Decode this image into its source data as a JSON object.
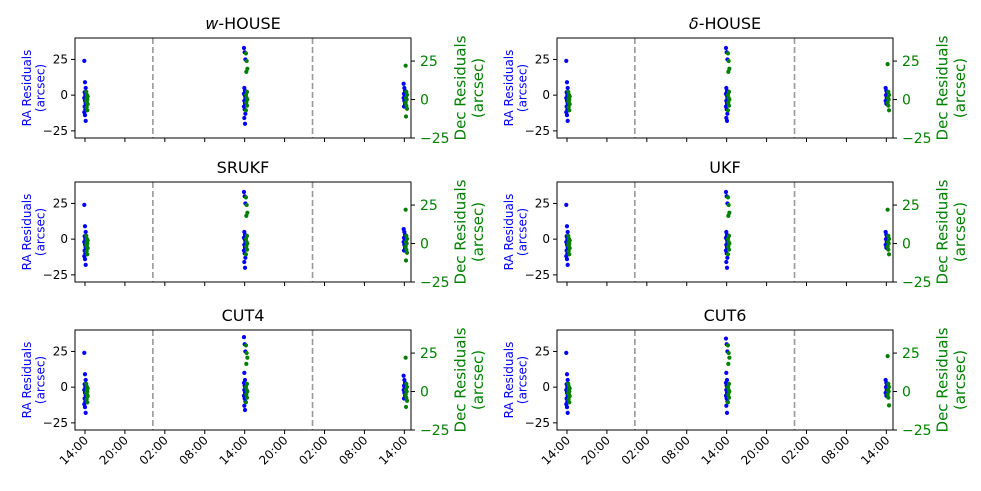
{
  "figure": {
    "colors": {
      "ra": "#0000ff",
      "dec": "#008000",
      "divider": "#999999",
      "axis": "#000000"
    },
    "ra_ylabel_line1": "RA Residuals",
    "ra_ylabel_line2": "(arcsec)",
    "dec_ylabel_line1": "Dec Residuals",
    "dec_ylabel_line2": "(arcsec)"
  },
  "chart_data": [
    {
      "type": "scatter",
      "title_prefix": "w",
      "title": "-HOUSE",
      "x_ticks": [
        "14:00",
        "20:00",
        "02:00",
        "08:00",
        "14:00",
        "20:00",
        "02:00",
        "08:00",
        "14:00"
      ],
      "x_hours": [
        0,
        6,
        12,
        18,
        24,
        30,
        36,
        42,
        48
      ],
      "xlim": [
        -1.5,
        49
      ],
      "dividers_hours": [
        10.2,
        34.2
      ],
      "left_axis": {
        "label": "RA Residuals (arcsec)",
        "ticks": [
          -25,
          0,
          25
        ],
        "ylim": [
          -30,
          40
        ]
      },
      "right_axis": {
        "label": "Dec Residuals (arcsec)",
        "ticks": [
          -25,
          0,
          25
        ],
        "ylim": [
          -25,
          40
        ]
      },
      "series": [
        {
          "name": "RA",
          "axis": "left",
          "clusters": [
            {
              "x": 0,
              "y": [
                24,
                9,
                5,
                2,
                0,
                -2,
                -4,
                -6,
                -8,
                -10,
                -12,
                -14,
                -18
              ]
            },
            {
              "x": 24,
              "y": [
                33,
                30,
                25,
                5,
                3,
                1,
                0,
                -2,
                -4,
                -6,
                -8,
                -10,
                -13,
                -16,
                -20
              ]
            },
            {
              "x": 48,
              "y": [
                8,
                5,
                3,
                1,
                0,
                -2,
                -4,
                -6,
                -8
              ]
            }
          ]
        },
        {
          "name": "Dec",
          "axis": "right",
          "clusters": [
            {
              "x": 0.3,
              "y": [
                5,
                3,
                2,
                1,
                0,
                -1,
                -2,
                -3,
                -5,
                -7
              ]
            },
            {
              "x": 24.3,
              "y": [
                30,
                25,
                20,
                18,
                5,
                3,
                1,
                0,
                -2,
                -4,
                -7
              ]
            },
            {
              "x": 48.3,
              "y": [
                22,
                5,
                3,
                1,
                0,
                -2,
                -4,
                -6,
                -11
              ]
            }
          ]
        }
      ]
    },
    {
      "type": "scatter",
      "title_prefix": "δ",
      "title": "-HOUSE",
      "x_ticks": [
        "14:00",
        "20:00",
        "02:00",
        "08:00",
        "14:00",
        "20:00",
        "02:00",
        "08:00",
        "14:00"
      ],
      "x_hours": [
        0,
        6,
        12,
        18,
        24,
        30,
        36,
        42,
        48
      ],
      "xlim": [
        -1.5,
        49
      ],
      "dividers_hours": [
        10.2,
        34.2
      ],
      "left_axis": {
        "label": "RA Residuals (arcsec)",
        "ticks": [
          -25,
          0,
          25
        ],
        "ylim": [
          -30,
          40
        ]
      },
      "right_axis": {
        "label": "Dec Residuals (arcsec)",
        "ticks": [
          -25,
          0,
          25
        ],
        "ylim": [
          -25,
          40
        ]
      },
      "series": [
        {
          "name": "RA",
          "axis": "left",
          "clusters": [
            {
              "x": 0,
              "y": [
                24,
                9,
                5,
                2,
                0,
                -2,
                -4,
                -6,
                -8,
                -10,
                -12,
                -14,
                -18
              ]
            },
            {
              "x": 24,
              "y": [
                33,
                30,
                25,
                5,
                3,
                1,
                0,
                -2,
                -4,
                -6,
                -8,
                -10,
                -13,
                -16,
                -18
              ]
            },
            {
              "x": 48,
              "y": [
                5,
                3,
                1,
                0,
                -2,
                -4,
                -6
              ]
            }
          ]
        },
        {
          "name": "Dec",
          "axis": "right",
          "clusters": [
            {
              "x": 0.3,
              "y": [
                5,
                3,
                2,
                1,
                0,
                -1,
                -2,
                -3,
                -5,
                -7
              ]
            },
            {
              "x": 24.3,
              "y": [
                30,
                25,
                20,
                18,
                5,
                3,
                1,
                0,
                -2,
                -4,
                -7
              ]
            },
            {
              "x": 48.3,
              "y": [
                23,
                5,
                3,
                1,
                0,
                -2,
                -4,
                -7
              ]
            }
          ]
        }
      ]
    },
    {
      "type": "scatter",
      "title_prefix": "",
      "title": "SRUKF",
      "x_ticks": [
        "14:00",
        "20:00",
        "02:00",
        "08:00",
        "14:00",
        "20:00",
        "02:00",
        "08:00",
        "14:00"
      ],
      "x_hours": [
        0,
        6,
        12,
        18,
        24,
        30,
        36,
        42,
        48
      ],
      "xlim": [
        -1.5,
        49
      ],
      "dividers_hours": [
        10.2,
        34.2
      ],
      "left_axis": {
        "label": "RA Residuals (arcsec)",
        "ticks": [
          -25,
          0,
          25
        ],
        "ylim": [
          -30,
          40
        ]
      },
      "right_axis": {
        "label": "Dec Residuals (arcsec)",
        "ticks": [
          -25,
          0,
          25
        ],
        "ylim": [
          -25,
          40
        ]
      },
      "series": [
        {
          "name": "RA",
          "axis": "left",
          "clusters": [
            {
              "x": 0,
              "y": [
                24,
                9,
                5,
                2,
                0,
                -2,
                -4,
                -6,
                -8,
                -10,
                -12,
                -14,
                -18
              ]
            },
            {
              "x": 24,
              "y": [
                33,
                30,
                25,
                5,
                3,
                1,
                0,
                -2,
                -4,
                -6,
                -8,
                -10,
                -13,
                -16,
                -20
              ]
            },
            {
              "x": 48,
              "y": [
                7,
                5,
                3,
                1,
                0,
                -2,
                -4,
                -6,
                -8
              ]
            }
          ]
        },
        {
          "name": "Dec",
          "axis": "right",
          "clusters": [
            {
              "x": 0.3,
              "y": [
                5,
                3,
                2,
                1,
                0,
                -1,
                -2,
                -3,
                -5,
                -7
              ]
            },
            {
              "x": 24.3,
              "y": [
                30,
                25,
                20,
                18,
                5,
                3,
                1,
                0,
                -2,
                -4,
                -7
              ]
            },
            {
              "x": 48.3,
              "y": [
                22,
                5,
                3,
                1,
                0,
                -2,
                -4,
                -6,
                -11
              ]
            }
          ]
        }
      ]
    },
    {
      "type": "scatter",
      "title_prefix": "",
      "title": "UKF",
      "x_ticks": [
        "14:00",
        "20:00",
        "02:00",
        "08:00",
        "14:00",
        "20:00",
        "02:00",
        "08:00",
        "14:00"
      ],
      "x_hours": [
        0,
        6,
        12,
        18,
        24,
        30,
        36,
        42,
        48
      ],
      "xlim": [
        -1.5,
        49
      ],
      "dividers_hours": [
        10.2,
        34.2
      ],
      "left_axis": {
        "label": "RA Residuals (arcsec)",
        "ticks": [
          -25,
          0,
          25
        ],
        "ylim": [
          -30,
          40
        ]
      },
      "right_axis": {
        "label": "Dec Residuals (arcsec)",
        "ticks": [
          -25,
          0,
          25
        ],
        "ylim": [
          -25,
          40
        ]
      },
      "series": [
        {
          "name": "RA",
          "axis": "left",
          "clusters": [
            {
              "x": 0,
              "y": [
                24,
                9,
                5,
                2,
                0,
                -2,
                -4,
                -6,
                -8,
                -10,
                -12,
                -14,
                -18
              ]
            },
            {
              "x": 24,
              "y": [
                33,
                30,
                25,
                5,
                3,
                1,
                0,
                -2,
                -4,
                -6,
                -8,
                -10,
                -13,
                -16,
                -20
              ]
            },
            {
              "x": 48,
              "y": [
                5,
                3,
                1,
                0,
                -2,
                -4,
                -6
              ]
            }
          ]
        },
        {
          "name": "Dec",
          "axis": "right",
          "clusters": [
            {
              "x": 0.3,
              "y": [
                5,
                3,
                2,
                1,
                0,
                -1,
                -2,
                -3,
                -5,
                -7
              ]
            },
            {
              "x": 24.3,
              "y": [
                30,
                25,
                20,
                18,
                5,
                3,
                1,
                0,
                -2,
                -4,
                -7
              ]
            },
            {
              "x": 48.3,
              "y": [
                22,
                5,
                3,
                1,
                0,
                -2,
                -4,
                -7
              ]
            }
          ]
        }
      ]
    },
    {
      "type": "scatter",
      "title_prefix": "",
      "title": "CUT4",
      "x_ticks": [
        "14:00",
        "20:00",
        "02:00",
        "08:00",
        "14:00",
        "20:00",
        "02:00",
        "08:00",
        "14:00"
      ],
      "x_hours": [
        0,
        6,
        12,
        18,
        24,
        30,
        36,
        42,
        48
      ],
      "xlim": [
        -1.5,
        49
      ],
      "dividers_hours": [
        10.2,
        34.2
      ],
      "left_axis": {
        "label": "RA Residuals (arcsec)",
        "ticks": [
          -25,
          0,
          25
        ],
        "ylim": [
          -30,
          40
        ]
      },
      "right_axis": {
        "label": "Dec Residuals (arcsec)",
        "ticks": [
          -25,
          0,
          25
        ],
        "ylim": [
          -25,
          40
        ]
      },
      "series": [
        {
          "name": "RA",
          "axis": "left",
          "clusters": [
            {
              "x": 0,
              "y": [
                24,
                9,
                5,
                2,
                0,
                -2,
                -4,
                -6,
                -8,
                -10,
                -12,
                -14,
                -18
              ]
            },
            {
              "x": 24,
              "y": [
                35,
                30,
                25,
                10,
                5,
                3,
                1,
                0,
                -2,
                -4,
                -6,
                -8,
                -10,
                -13,
                -16
              ]
            },
            {
              "x": 48,
              "y": [
                8,
                5,
                3,
                1,
                0,
                -2,
                -4,
                -6,
                -8
              ]
            }
          ]
        },
        {
          "name": "Dec",
          "axis": "right",
          "clusters": [
            {
              "x": 0.3,
              "y": [
                5,
                3,
                2,
                1,
                0,
                -1,
                -2,
                -3,
                -5,
                -7
              ]
            },
            {
              "x": 24.3,
              "y": [
                30,
                25,
                22,
                18,
                5,
                3,
                1,
                0,
                -2,
                -4,
                -7
              ]
            },
            {
              "x": 48.3,
              "y": [
                22,
                5,
                3,
                1,
                0,
                -2,
                -4,
                -6,
                -10
              ]
            }
          ]
        }
      ]
    },
    {
      "type": "scatter",
      "title_prefix": "",
      "title": "CUT6",
      "x_ticks": [
        "14:00",
        "20:00",
        "02:00",
        "08:00",
        "14:00",
        "20:00",
        "02:00",
        "08:00",
        "14:00"
      ],
      "x_hours": [
        0,
        6,
        12,
        18,
        24,
        30,
        36,
        42,
        48
      ],
      "xlim": [
        -1.5,
        49
      ],
      "dividers_hours": [
        10.2,
        34.2
      ],
      "left_axis": {
        "label": "RA Residuals (arcsec)",
        "ticks": [
          -25,
          0,
          25
        ],
        "ylim": [
          -30,
          40
        ]
      },
      "right_axis": {
        "label": "Dec Residuals (arcsec)",
        "ticks": [
          -25,
          0,
          25
        ],
        "ylim": [
          -25,
          40
        ]
      },
      "series": [
        {
          "name": "RA",
          "axis": "left",
          "clusters": [
            {
              "x": 0,
              "y": [
                24,
                9,
                5,
                2,
                0,
                -2,
                -4,
                -6,
                -8,
                -10,
                -12,
                -14,
                -18
              ]
            },
            {
              "x": 24,
              "y": [
                34,
                30,
                25,
                10,
                5,
                3,
                1,
                0,
                -2,
                -4,
                -6,
                -8,
                -10,
                -13,
                -18
              ]
            },
            {
              "x": 48,
              "y": [
                5,
                3,
                1,
                0,
                -2,
                -4,
                -6
              ]
            }
          ]
        },
        {
          "name": "Dec",
          "axis": "right",
          "clusters": [
            {
              "x": 0.3,
              "y": [
                5,
                3,
                2,
                1,
                0,
                -1,
                -2,
                -3,
                -5,
                -7
              ]
            },
            {
              "x": 24.3,
              "y": [
                30,
                25,
                22,
                18,
                5,
                3,
                1,
                0,
                -2,
                -4,
                -7
              ]
            },
            {
              "x": 48.3,
              "y": [
                23,
                5,
                3,
                1,
                0,
                -2,
                -4,
                -9
              ]
            }
          ]
        }
      ]
    }
  ]
}
